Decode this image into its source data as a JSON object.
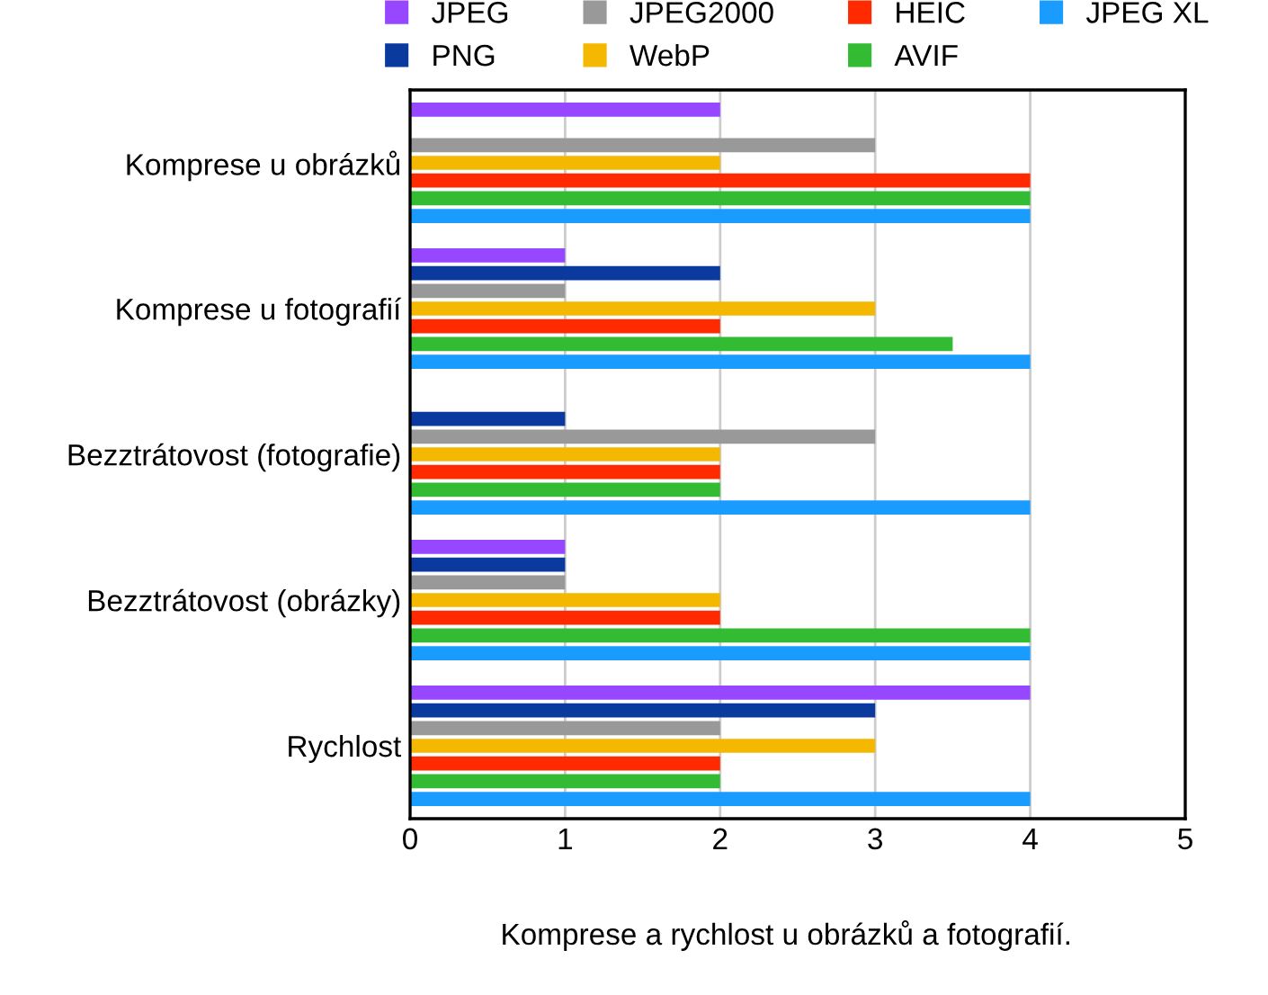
{
  "chart_data": {
    "type": "bar",
    "orientation": "horizontal",
    "categories": [
      "Komprese u obrázků",
      "Komprese u fotografií",
      "Bezztrátovost (fotografie)",
      "Bezztrátovost (obrázky)",
      "Rychlost"
    ],
    "series": [
      {
        "name": "JPEG",
        "color": "#9747ff",
        "values": [
          2,
          1,
          0,
          1,
          4
        ]
      },
      {
        "name": "PNG",
        "color": "#0a3a9e",
        "values": [
          0,
          2,
          1,
          1,
          3
        ]
      },
      {
        "name": "JPEG2000",
        "color": "#999999",
        "values": [
          3,
          1,
          3,
          1,
          2
        ]
      },
      {
        "name": "WebP",
        "color": "#f5b800",
        "values": [
          2,
          3,
          2,
          2,
          3
        ]
      },
      {
        "name": "HEIC",
        "color": "#ff2a00",
        "values": [
          4,
          2,
          2,
          2,
          2
        ]
      },
      {
        "name": "AVIF",
        "color": "#33bb33",
        "values": [
          4,
          3.5,
          2,
          4,
          2
        ]
      },
      {
        "name": "JPEG XL",
        "color": "#1a9cff",
        "values": [
          4,
          4,
          4,
          4,
          4
        ]
      }
    ],
    "xlim": [
      0,
      5
    ],
    "xticks": [
      0,
      1,
      2,
      3,
      4,
      5
    ],
    "grid": "x",
    "legend": "top",
    "annotations": [
      "Komprese a rychlost u obrázků a fotografií."
    ]
  }
}
